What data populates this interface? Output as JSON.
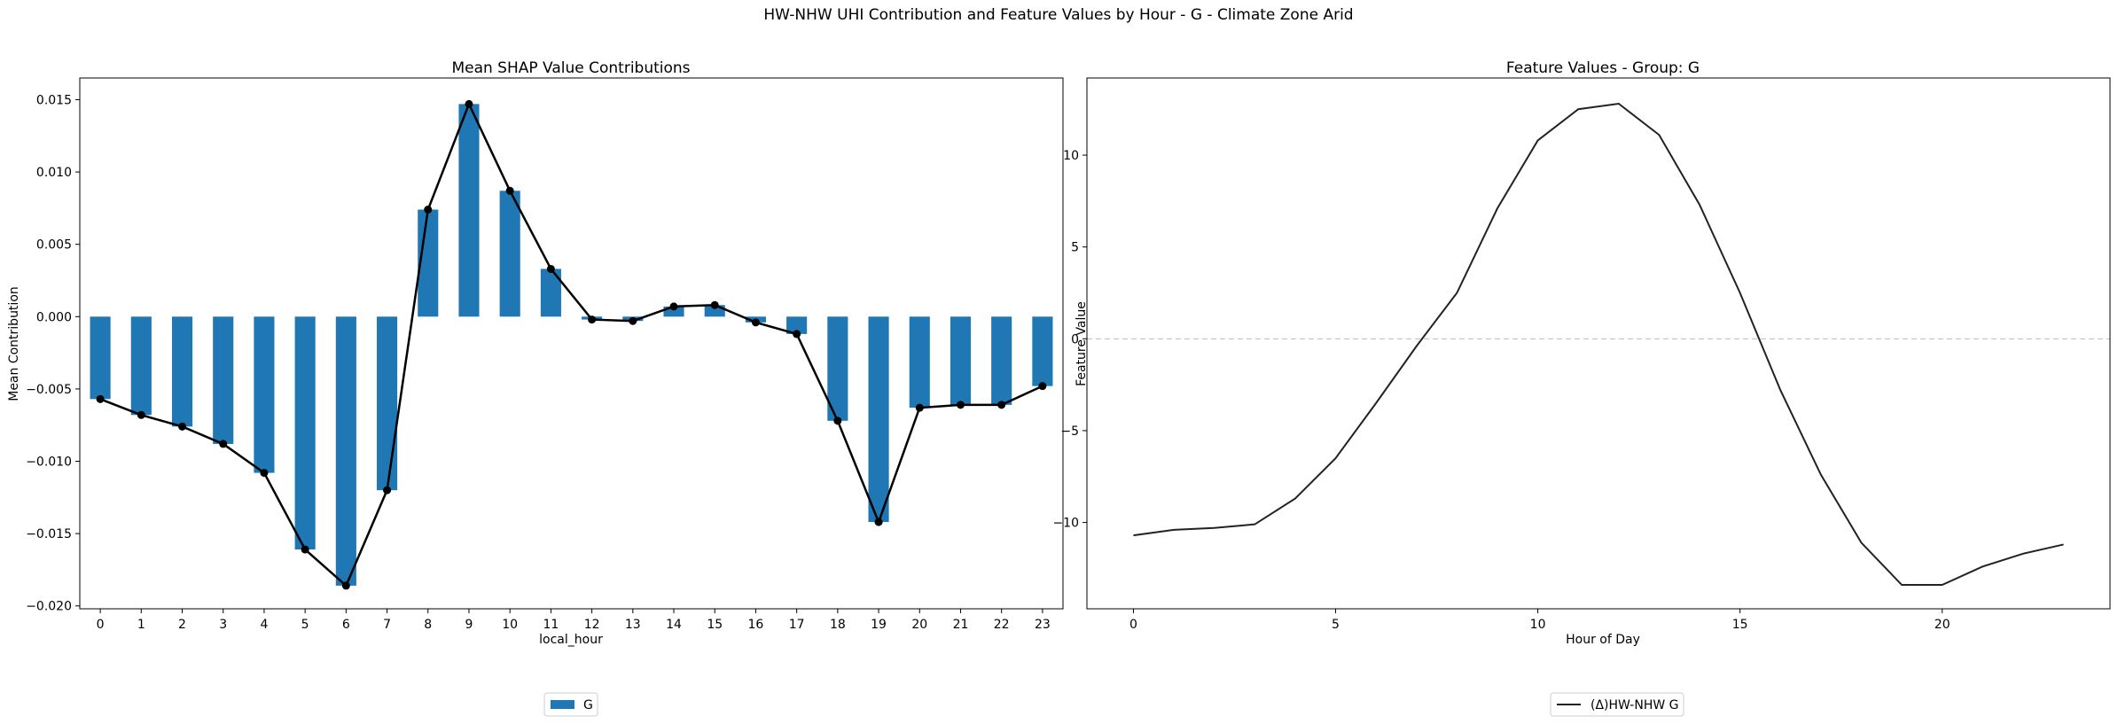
{
  "suptitle": "HW-NHW UHI Contribution and Feature Values by Hour - G - Climate Zone Arid",
  "chart_data": [
    {
      "type": "bar",
      "title": "Mean SHAP Value Contributions",
      "xlabel": "local_hour",
      "ylabel": "Mean Contribution",
      "categories": [
        "0",
        "1",
        "2",
        "3",
        "4",
        "5",
        "6",
        "7",
        "8",
        "9",
        "10",
        "11",
        "12",
        "13",
        "14",
        "15",
        "16",
        "17",
        "18",
        "19",
        "20",
        "21",
        "22",
        "23"
      ],
      "series": [
        {
          "name": "G",
          "color": "#1f77b4",
          "values": [
            -0.0057,
            -0.0068,
            -0.0076,
            -0.0088,
            -0.0108,
            -0.0161,
            -0.0186,
            -0.012,
            0.0074,
            0.0147,
            0.0087,
            0.0033,
            -0.0002,
            -0.0003,
            0.0007,
            0.0008,
            -0.0004,
            -0.0012,
            -0.0072,
            -0.0142,
            -0.0063,
            -0.0061,
            -0.0061,
            -0.0048
          ]
        }
      ],
      "overlay_line": {
        "color": "#000000",
        "marker": "circle"
      },
      "ylim": [
        -0.0202,
        0.0165
      ],
      "yticks": [
        -0.02,
        -0.015,
        -0.01,
        -0.005,
        0.0,
        0.005,
        0.01,
        0.015
      ],
      "ytick_labels": [
        "−0.020",
        "−0.015",
        "−0.010",
        "−0.005",
        "0.000",
        "0.005",
        "0.010",
        "0.015"
      ],
      "grid": false,
      "legend_position": "bottom-center"
    },
    {
      "type": "line",
      "title": "Feature Values - Group: G",
      "xlabel": "Hour of Day",
      "ylabel": "Feature Value",
      "x": [
        0,
        1,
        2,
        3,
        4,
        5,
        6,
        7,
        8,
        9,
        10,
        11,
        12,
        13,
        14,
        15,
        16,
        17,
        18,
        19,
        20,
        21,
        22,
        23
      ],
      "series": [
        {
          "name": "(Δ)HW-NHW G",
          "color": "#222222",
          "values": [
            -10.7,
            -10.4,
            -10.3,
            -10.1,
            -8.7,
            -6.5,
            -3.5,
            -0.4,
            2.5,
            7.1,
            10.8,
            12.5,
            12.8,
            11.1,
            7.3,
            2.5,
            -2.8,
            -7.4,
            -11.1,
            -13.4,
            -13.4,
            -12.4,
            -11.7,
            -11.2
          ]
        }
      ],
      "reference_line": {
        "y": 0,
        "style": "dashed",
        "color": "#bbbbbb"
      },
      "xlim": [
        -1.15,
        24.15
      ],
      "ylim": [
        -14.7,
        14.2
      ],
      "xticks": [
        0,
        5,
        10,
        15,
        20
      ],
      "yticks": [
        -10,
        -5,
        0,
        5,
        10
      ],
      "ytick_labels": [
        "−10",
        "−5",
        "0",
        "5",
        "10"
      ],
      "grid": false,
      "legend_position": "bottom-center"
    }
  ]
}
